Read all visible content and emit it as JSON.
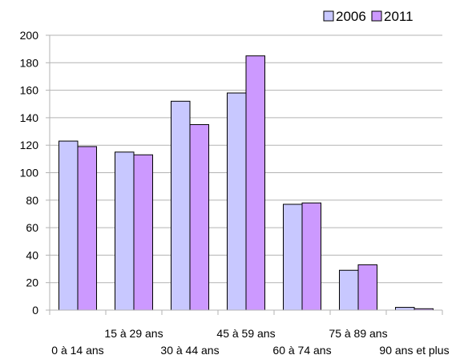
{
  "chart_data": {
    "type": "bar",
    "categories": [
      "0 à 14 ans",
      "15 à 29 ans",
      "30 à 44 ans",
      "45 à 59 ans",
      "60 à 74 ans",
      "75 à 89 ans",
      "90 ans et plus"
    ],
    "series": [
      {
        "name": "2006",
        "values": [
          123,
          115,
          152,
          158,
          77,
          29,
          2
        ],
        "color": "#c8c8ff"
      },
      {
        "name": "2011",
        "values": [
          119,
          113,
          135,
          185,
          78,
          33,
          1
        ],
        "color": "#cc99ff"
      }
    ],
    "ylim": [
      0,
      200
    ],
    "yticks": [
      0,
      20,
      40,
      60,
      80,
      100,
      120,
      140,
      160,
      180,
      200
    ],
    "grid": true,
    "legend_position": "top-right",
    "category_labels_staggered": true
  }
}
